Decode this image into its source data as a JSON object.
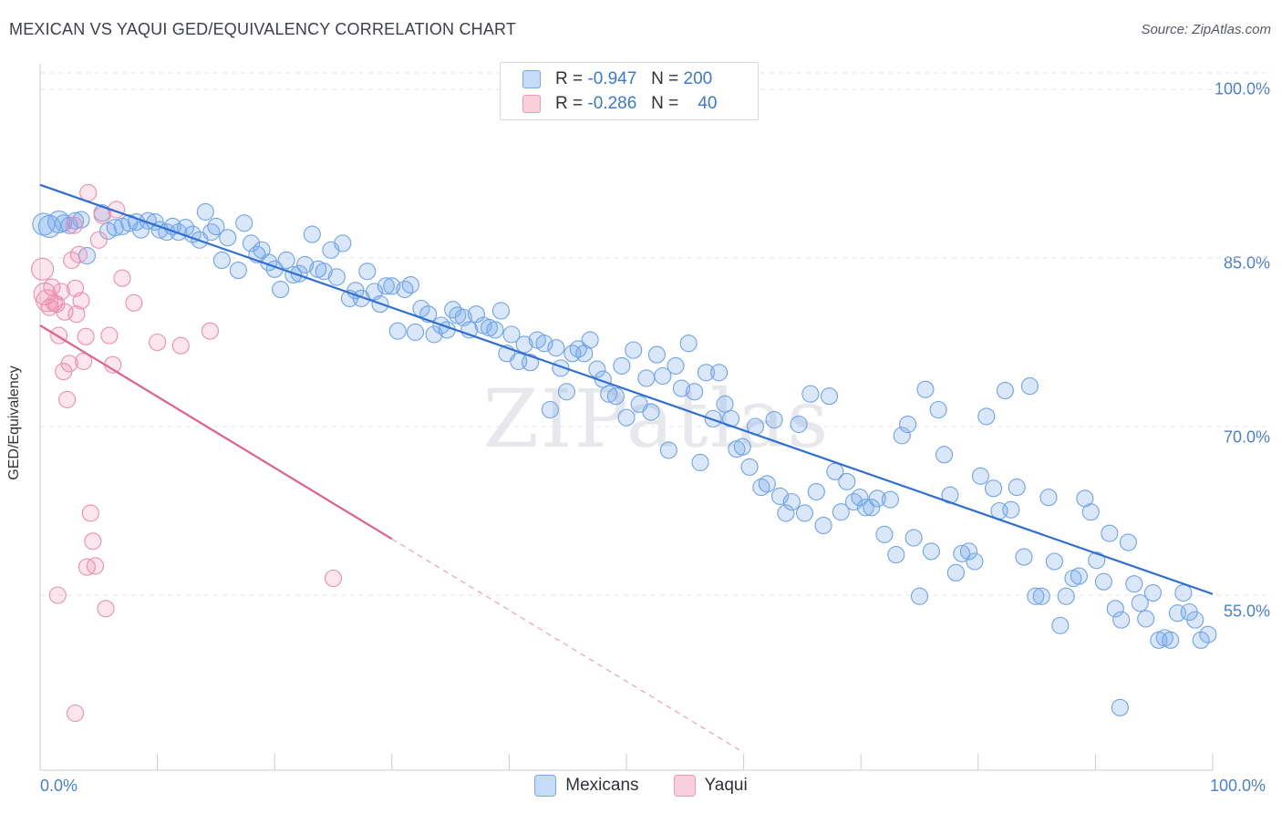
{
  "title": "MEXICAN VS YAQUI GED/EQUIVALENCY CORRELATION CHART",
  "source": "Source: ZipAtlas.com",
  "watermark": "ZIPatlas",
  "legend": {
    "rows": [
      {
        "r_label": "R =",
        "r_value": "-0.947",
        "n_label": "N =",
        "n_value": "200",
        "color": "#6fa3e8"
      },
      {
        "r_label": "R =",
        "r_value": "-0.286",
        "n_label": "N =",
        "n_value": "40",
        "color": "#f08aaa"
      }
    ]
  },
  "bottom_legend": [
    {
      "label": "Mexicans",
      "color": "#6fa3e8"
    },
    {
      "label": "Yaqui",
      "color": "#f08aaa"
    }
  ],
  "chart_data": {
    "type": "scatter",
    "title": "MEXICAN VS YAQUI GED/EQUIVALENCY CORRELATION CHART",
    "xlabel": "",
    "ylabel": "GED/Equivalency",
    "xlim": [
      0,
      100
    ],
    "ylim": [
      40,
      102
    ],
    "x_tick_labels": [
      "0.0%",
      "100.0%"
    ],
    "y_tick_labels": [
      "100.0%",
      "85.0%",
      "70.0%",
      "55.0%"
    ],
    "y_ticks": [
      100,
      85,
      70,
      55
    ],
    "grid": true,
    "legend_position": "top-center",
    "series": [
      {
        "name": "Mexicans",
        "color": "#6fa3e8",
        "trend": {
          "x": [
            0,
            100
          ],
          "y": [
            91.5,
            55.1
          ]
        },
        "points": [
          [
            0.3,
            88.0
          ],
          [
            0.8,
            87.8
          ],
          [
            1.6,
            88.2
          ],
          [
            2.0,
            88.1
          ],
          [
            2.5,
            87.9
          ],
          [
            3.0,
            88.3
          ],
          [
            3.5,
            88.4
          ],
          [
            4.0,
            85.2
          ],
          [
            5.3,
            89.0
          ],
          [
            5.8,
            87.4
          ],
          [
            6.4,
            87.7
          ],
          [
            7.0,
            87.8
          ],
          [
            7.6,
            88.1
          ],
          [
            8.2,
            88.2
          ],
          [
            8.6,
            87.5
          ],
          [
            9.2,
            88.3
          ],
          [
            9.8,
            88.2
          ],
          [
            10.2,
            87.5
          ],
          [
            10.8,
            87.3
          ],
          [
            11.3,
            87.8
          ],
          [
            11.8,
            87.3
          ],
          [
            12.4,
            87.7
          ],
          [
            13.0,
            87.1
          ],
          [
            13.6,
            86.6
          ],
          [
            14.1,
            89.1
          ],
          [
            14.6,
            87.3
          ],
          [
            15.0,
            87.8
          ],
          [
            15.5,
            84.8
          ],
          [
            16.0,
            86.8
          ],
          [
            16.9,
            83.9
          ],
          [
            17.4,
            88.1
          ],
          [
            18.0,
            86.3
          ],
          [
            18.5,
            85.3
          ],
          [
            18.9,
            85.7
          ],
          [
            19.5,
            84.6
          ],
          [
            20.0,
            84.0
          ],
          [
            20.5,
            82.2
          ],
          [
            21.0,
            84.8
          ],
          [
            21.6,
            83.5
          ],
          [
            22.1,
            83.6
          ],
          [
            22.6,
            84.4
          ],
          [
            23.2,
            87.1
          ],
          [
            23.7,
            84.0
          ],
          [
            24.2,
            83.8
          ],
          [
            24.8,
            85.7
          ],
          [
            25.3,
            83.3
          ],
          [
            25.8,
            86.3
          ],
          [
            26.4,
            81.4
          ],
          [
            26.9,
            82.1
          ],
          [
            27.4,
            81.4
          ],
          [
            27.9,
            83.8
          ],
          [
            28.5,
            82.0
          ],
          [
            29.0,
            80.9
          ],
          [
            29.5,
            82.5
          ],
          [
            30.0,
            82.5
          ],
          [
            30.5,
            78.5
          ],
          [
            31.1,
            82.2
          ],
          [
            31.6,
            82.6
          ],
          [
            32.0,
            78.4
          ],
          [
            32.5,
            80.5
          ],
          [
            33.1,
            80.0
          ],
          [
            33.6,
            78.2
          ],
          [
            34.2,
            79.0
          ],
          [
            34.7,
            78.6
          ],
          [
            35.2,
            80.4
          ],
          [
            35.6,
            79.9
          ],
          [
            36.1,
            79.7
          ],
          [
            36.6,
            78.6
          ],
          [
            37.2,
            80.0
          ],
          [
            37.8,
            79.0
          ],
          [
            38.3,
            78.8
          ],
          [
            38.8,
            78.6
          ],
          [
            39.3,
            80.3
          ],
          [
            39.8,
            76.5
          ],
          [
            40.2,
            78.2
          ],
          [
            40.8,
            75.8
          ],
          [
            41.3,
            77.3
          ],
          [
            41.8,
            75.7
          ],
          [
            42.4,
            77.7
          ],
          [
            43.0,
            77.4
          ],
          [
            43.5,
            71.5
          ],
          [
            44.0,
            77.0
          ],
          [
            44.4,
            75.2
          ],
          [
            44.9,
            73.1
          ],
          [
            45.4,
            76.5
          ],
          [
            45.9,
            76.9
          ],
          [
            46.4,
            76.5
          ],
          [
            46.9,
            77.7
          ],
          [
            47.5,
            75.1
          ],
          [
            48.0,
            74.2
          ],
          [
            48.5,
            72.9
          ],
          [
            49.1,
            72.7
          ],
          [
            49.6,
            75.4
          ],
          [
            50.0,
            70.8
          ],
          [
            50.6,
            76.8
          ],
          [
            51.1,
            72.0
          ],
          [
            51.7,
            74.3
          ],
          [
            52.1,
            71.3
          ],
          [
            52.6,
            76.4
          ],
          [
            53.1,
            74.5
          ],
          [
            53.6,
            67.9
          ],
          [
            54.2,
            75.4
          ],
          [
            54.7,
            73.4
          ],
          [
            55.3,
            77.4
          ],
          [
            55.8,
            73.1
          ],
          [
            56.3,
            66.8
          ],
          [
            56.8,
            74.8
          ],
          [
            57.4,
            70.7
          ],
          [
            57.9,
            74.8
          ],
          [
            58.4,
            72.0
          ],
          [
            58.9,
            70.7
          ],
          [
            59.4,
            68.0
          ],
          [
            59.9,
            68.2
          ],
          [
            60.5,
            66.4
          ],
          [
            61.0,
            70.0
          ],
          [
            61.5,
            64.6
          ],
          [
            62.0,
            64.9
          ],
          [
            62.6,
            70.6
          ],
          [
            63.1,
            63.8
          ],
          [
            63.6,
            62.3
          ],
          [
            64.1,
            63.3
          ],
          [
            64.7,
            70.2
          ],
          [
            65.2,
            62.3
          ],
          [
            65.7,
            72.9
          ],
          [
            66.2,
            64.2
          ],
          [
            66.8,
            61.2
          ],
          [
            67.3,
            72.7
          ],
          [
            67.8,
            66.0
          ],
          [
            68.3,
            62.4
          ],
          [
            68.8,
            65.1
          ],
          [
            69.4,
            63.3
          ],
          [
            69.9,
            63.7
          ],
          [
            70.4,
            62.8
          ],
          [
            70.9,
            62.8
          ],
          [
            71.4,
            63.6
          ],
          [
            72.0,
            60.4
          ],
          [
            72.5,
            63.5
          ],
          [
            73.0,
            58.6
          ],
          [
            73.5,
            69.2
          ],
          [
            74.0,
            70.2
          ],
          [
            74.5,
            60.1
          ],
          [
            75.0,
            54.9
          ],
          [
            75.5,
            73.3
          ],
          [
            76.0,
            58.9
          ],
          [
            76.6,
            71.5
          ],
          [
            77.1,
            67.5
          ],
          [
            77.6,
            63.9
          ],
          [
            78.1,
            57.0
          ],
          [
            78.6,
            58.7
          ],
          [
            79.2,
            58.9
          ],
          [
            79.7,
            58.0
          ],
          [
            80.2,
            65.6
          ],
          [
            80.7,
            70.9
          ],
          [
            81.3,
            64.5
          ],
          [
            81.8,
            62.5
          ],
          [
            82.3,
            73.2
          ],
          [
            82.8,
            62.6
          ],
          [
            83.3,
            64.6
          ],
          [
            83.9,
            58.4
          ],
          [
            84.4,
            73.6
          ],
          [
            84.9,
            54.9
          ],
          [
            85.4,
            54.9
          ],
          [
            86.0,
            63.7
          ],
          [
            86.5,
            58.0
          ],
          [
            87.0,
            52.3
          ],
          [
            87.5,
            54.9
          ],
          [
            88.1,
            56.5
          ],
          [
            88.6,
            56.7
          ],
          [
            89.1,
            63.6
          ],
          [
            89.6,
            62.4
          ],
          [
            90.1,
            58.1
          ],
          [
            90.7,
            56.2
          ],
          [
            91.2,
            60.5
          ],
          [
            91.7,
            53.8
          ],
          [
            92.2,
            52.8
          ],
          [
            92.8,
            59.7
          ],
          [
            93.3,
            56.0
          ],
          [
            93.8,
            54.3
          ],
          [
            94.3,
            52.9
          ],
          [
            94.9,
            55.2
          ],
          [
            95.4,
            51.0
          ],
          [
            95.9,
            51.2
          ],
          [
            96.4,
            51.0
          ],
          [
            97.0,
            53.4
          ],
          [
            97.5,
            55.2
          ],
          [
            98.0,
            53.5
          ],
          [
            98.5,
            52.8
          ],
          [
            99.0,
            51.0
          ],
          [
            99.6,
            51.5
          ],
          [
            92.1,
            45.0
          ]
        ]
      },
      {
        "name": "Yaqui",
        "color": "#f08aaa",
        "trend": {
          "x": [
            0,
            30
          ],
          "y": [
            79.0,
            60.0
          ]
        },
        "trend_dashed": {
          "x": [
            30,
            60
          ],
          "y": [
            60.0,
            41.0
          ]
        },
        "points": [
          [
            0.2,
            84.0
          ],
          [
            0.4,
            81.8
          ],
          [
            0.6,
            81.2
          ],
          [
            0.8,
            80.6
          ],
          [
            1.0,
            82.4
          ],
          [
            1.2,
            81.0
          ],
          [
            1.4,
            80.9
          ],
          [
            1.6,
            78.1
          ],
          [
            1.8,
            82.0
          ],
          [
            2.0,
            74.9
          ],
          [
            2.1,
            80.2
          ],
          [
            2.3,
            72.4
          ],
          [
            2.5,
            75.6
          ],
          [
            2.7,
            84.8
          ],
          [
            2.9,
            87.9
          ],
          [
            3.0,
            82.3
          ],
          [
            3.1,
            80.0
          ],
          [
            3.3,
            85.3
          ],
          [
            3.5,
            81.2
          ],
          [
            3.7,
            75.8
          ],
          [
            3.9,
            78.0
          ],
          [
            4.1,
            90.8
          ],
          [
            4.3,
            62.3
          ],
          [
            4.5,
            59.8
          ],
          [
            4.7,
            57.6
          ],
          [
            5.0,
            86.6
          ],
          [
            5.3,
            88.8
          ],
          [
            5.6,
            53.8
          ],
          [
            5.9,
            78.1
          ],
          [
            6.2,
            75.5
          ],
          [
            6.5,
            89.3
          ],
          [
            7.0,
            83.2
          ],
          [
            8.0,
            81.0
          ],
          [
            10.0,
            77.5
          ],
          [
            12.0,
            77.2
          ],
          [
            14.5,
            78.5
          ],
          [
            25.0,
            56.5
          ],
          [
            1.5,
            55.0
          ],
          [
            3.0,
            44.5
          ],
          [
            4.0,
            57.5
          ]
        ]
      }
    ]
  }
}
